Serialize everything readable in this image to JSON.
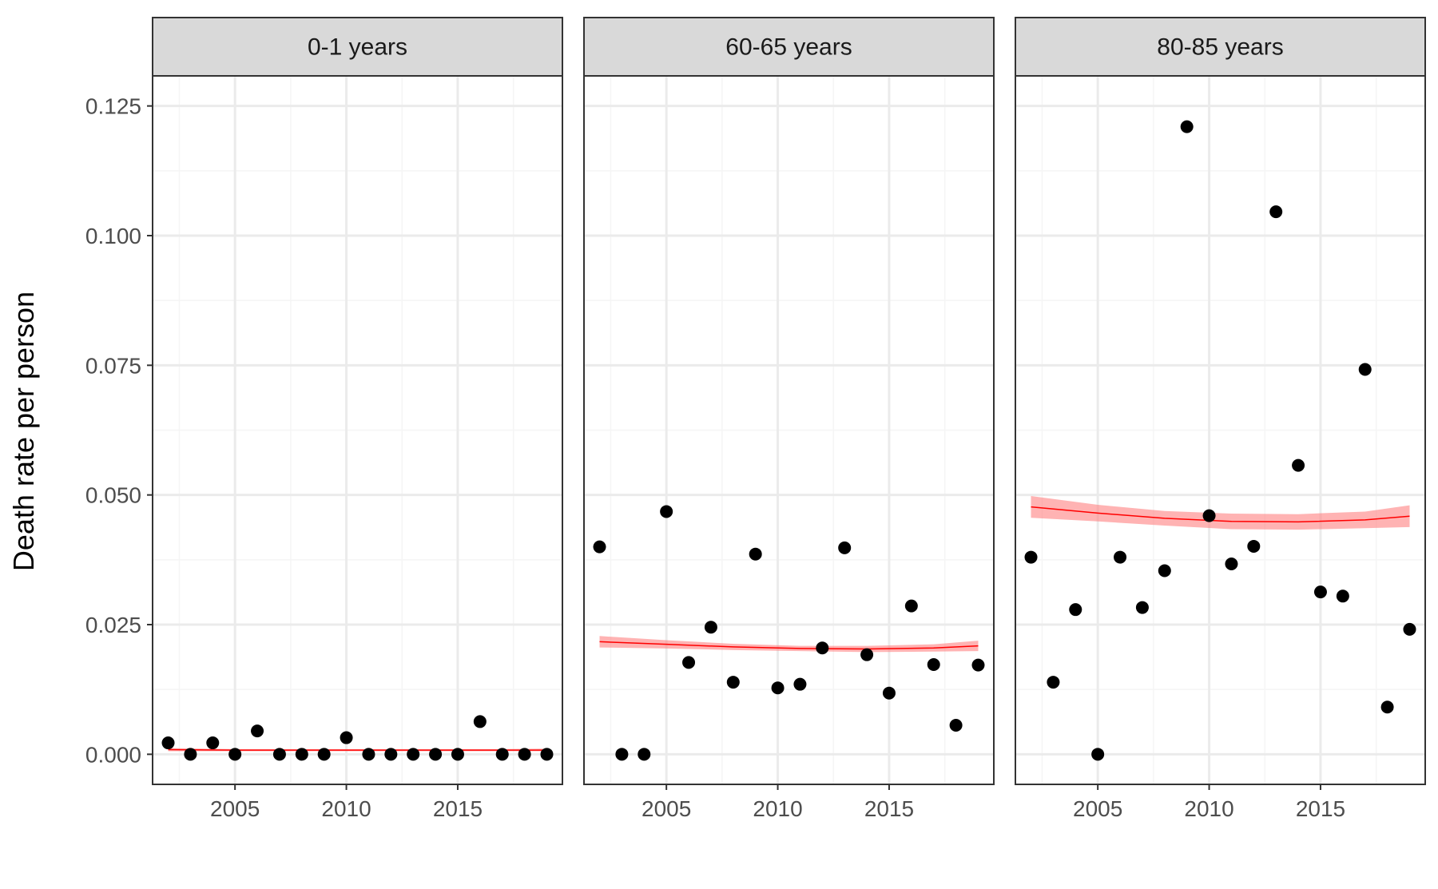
{
  "chart_data": {
    "type": "scatter",
    "xlabel": "",
    "ylabel": "Death rate per person",
    "xlim": [
      2001.3,
      2019.7
    ],
    "ylim": [
      -0.0058,
      0.1308
    ],
    "x_ticks": [
      2005,
      2010,
      2015
    ],
    "x_tick_labels": [
      "2005",
      "2010",
      "2015"
    ],
    "y_ticks": [
      0.0,
      0.025,
      0.05,
      0.075,
      0.1,
      0.125
    ],
    "y_tick_labels": [
      "0.000",
      "0.025",
      "0.050",
      "0.075",
      "0.100",
      "0.125"
    ],
    "grid": true,
    "panels": [
      {
        "label": "0-1 years",
        "x": [
          2002,
          2003,
          2004,
          2005,
          2006,
          2007,
          2008,
          2009,
          2010,
          2011,
          2012,
          2013,
          2014,
          2015,
          2016,
          2017,
          2018,
          2019
        ],
        "y": [
          0.0022,
          0.0,
          0.0022,
          0.0,
          0.0045,
          0.0,
          0.0,
          0.0,
          0.0032,
          0.0,
          0.0,
          0.0,
          0.0,
          0.0,
          0.0063,
          0.0,
          0.0,
          0.0
        ],
        "fit": {
          "x": [
            2002,
            2005,
            2008,
            2011,
            2014,
            2017,
            2019
          ],
          "y": [
            0.0009,
            0.0008,
            0.0008,
            0.0008,
            0.0008,
            0.0008,
            0.0008
          ],
          "lower": [
            0.0006,
            0.0006,
            0.0006,
            0.0006,
            0.0006,
            0.0006,
            0.0006
          ],
          "upper": [
            0.0012,
            0.001,
            0.001,
            0.001,
            0.001,
            0.001,
            0.0011
          ]
        }
      },
      {
        "label": "60-65 years",
        "x": [
          2002,
          2003,
          2004,
          2005,
          2006,
          2007,
          2008,
          2009,
          2010,
          2011,
          2012,
          2013,
          2014,
          2015,
          2016,
          2017,
          2018,
          2019
        ],
        "y": [
          0.04,
          0.0,
          0.0,
          0.0468,
          0.0177,
          0.0245,
          0.0139,
          0.0386,
          0.0128,
          0.0135,
          0.0205,
          0.0398,
          0.0192,
          0.0118,
          0.0286,
          0.0173,
          0.0056,
          0.0172
        ],
        "fit": {
          "x": [
            2002,
            2005,
            2008,
            2011,
            2014,
            2017,
            2019
          ],
          "y": [
            0.0217,
            0.0212,
            0.0207,
            0.0204,
            0.0203,
            0.0205,
            0.0209
          ],
          "lower": [
            0.0206,
            0.0204,
            0.0201,
            0.0199,
            0.0197,
            0.0198,
            0.0199
          ],
          "upper": [
            0.0228,
            0.022,
            0.0213,
            0.0209,
            0.0209,
            0.0212,
            0.0219
          ]
        }
      },
      {
        "label": "80-85 years",
        "x": [
          2002,
          2003,
          2004,
          2005,
          2006,
          2007,
          2008,
          2009,
          2010,
          2011,
          2012,
          2013,
          2014,
          2015,
          2016,
          2017,
          2018,
          2019
        ],
        "y": [
          0.038,
          0.0139,
          0.0279,
          0.0,
          0.038,
          0.0283,
          0.0354,
          0.121,
          0.046,
          0.0367,
          0.0401,
          0.1046,
          0.0557,
          0.0313,
          0.0305,
          0.0742,
          0.0091,
          0.0241
        ],
        "fit": {
          "x": [
            2002,
            2005,
            2008,
            2011,
            2014,
            2017,
            2019
          ],
          "y": [
            0.0477,
            0.0465,
            0.0455,
            0.0449,
            0.0448,
            0.0452,
            0.0459
          ],
          "lower": [
            0.0456,
            0.0449,
            0.0441,
            0.0434,
            0.0433,
            0.0436,
            0.0438
          ],
          "upper": [
            0.0498,
            0.0481,
            0.0469,
            0.0464,
            0.0463,
            0.0468,
            0.048
          ]
        }
      }
    ]
  },
  "colors": {
    "point": "#000000",
    "fit_line": "#ff0000",
    "ribbon": "#ff8080",
    "strip_bg": "#d9d9d9",
    "grid_major": "#ebebeb",
    "grid_minor": "#f5f5f5",
    "border": "#333333"
  }
}
